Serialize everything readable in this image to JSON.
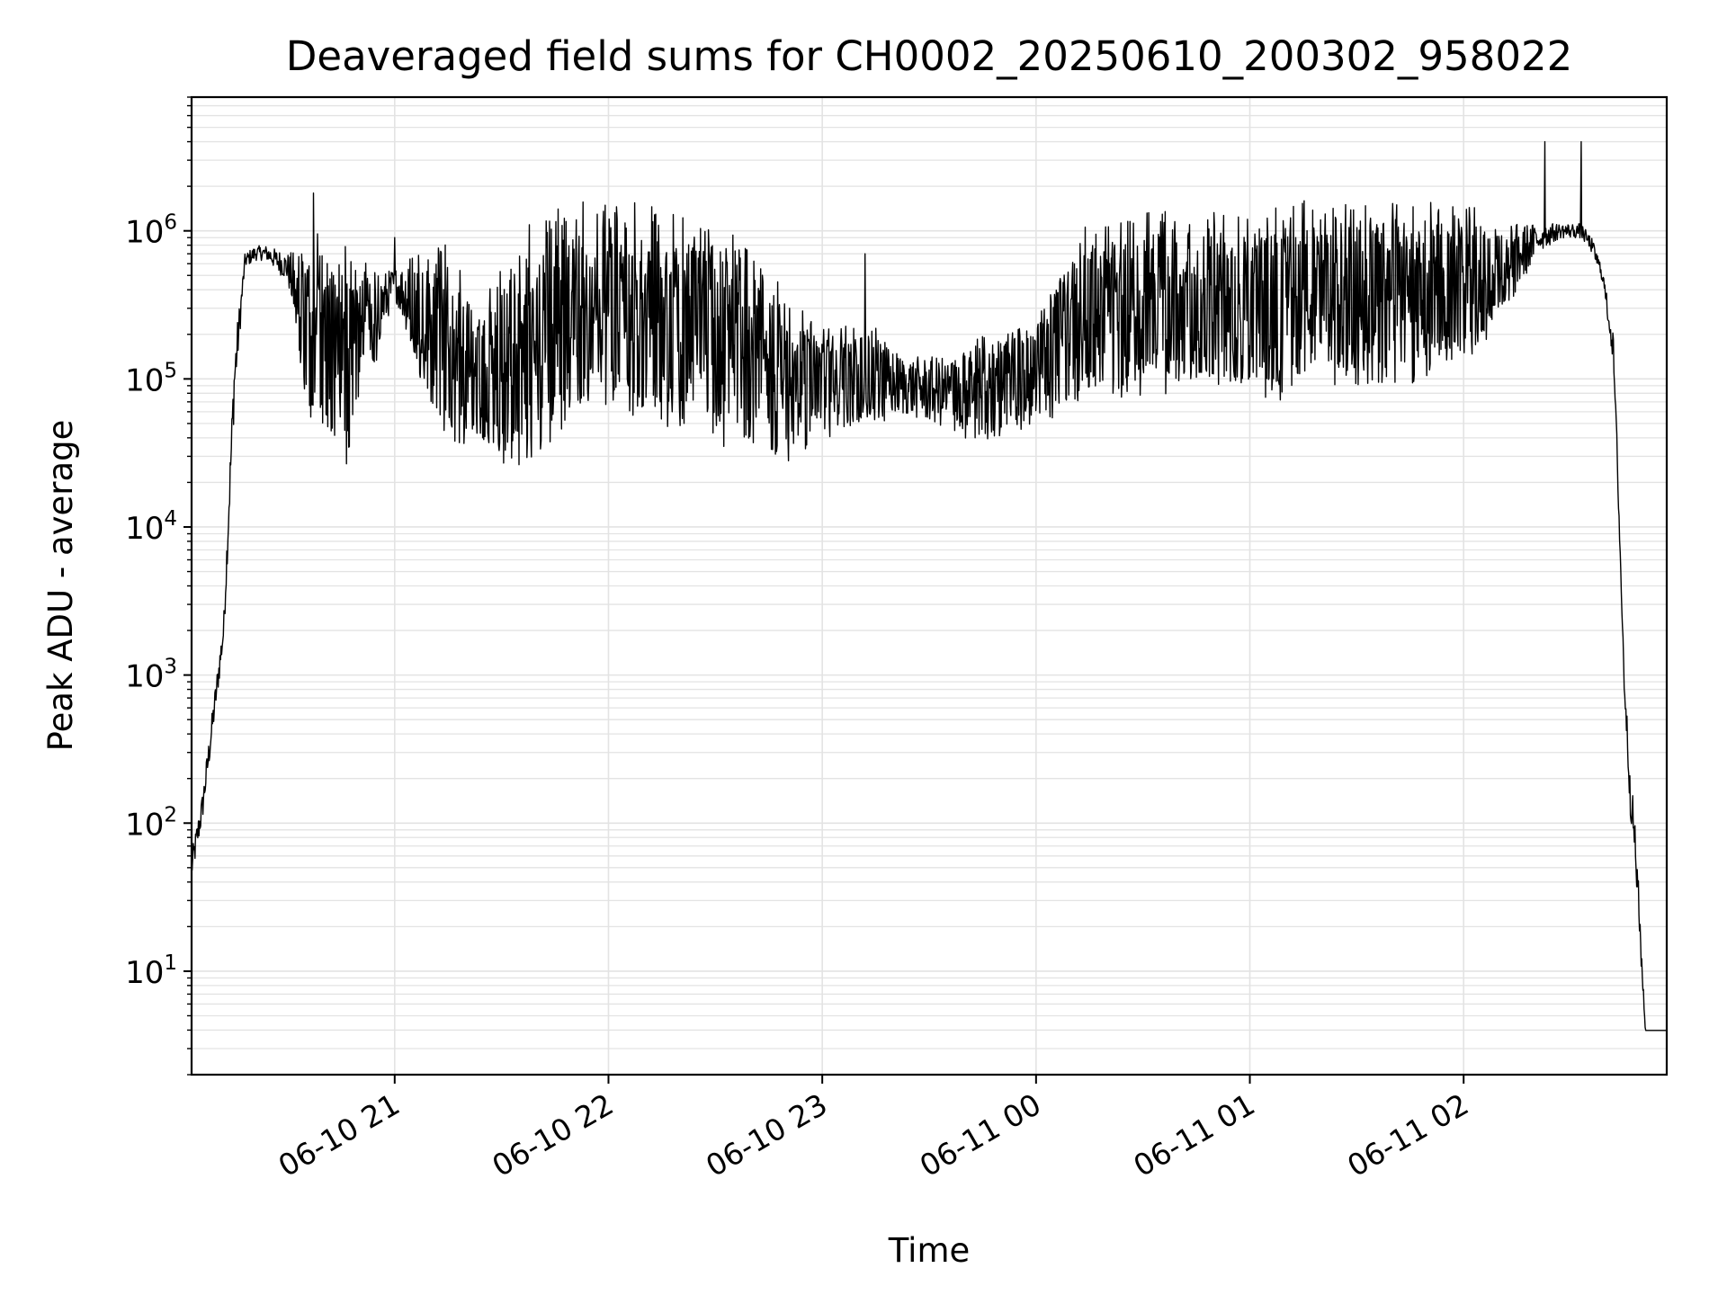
{
  "chart_data": {
    "type": "line",
    "title": "Deaveraged field sums for CH0002_20250610_200302_958022",
    "xlabel": "Time",
    "ylabel": "Peak ADU - average",
    "yscale": "log",
    "ylim": [
      2,
      8000000
    ],
    "xlim_hours": [
      20.05,
      26.95
    ],
    "grid": true,
    "line_color": "#000000",
    "grid_color": "#e3e3e3",
    "x_ticks": [
      {
        "hour": 21,
        "label": "06-10 21"
      },
      {
        "hour": 22,
        "label": "06-10 22"
      },
      {
        "hour": 23,
        "label": "06-10 23"
      },
      {
        "hour": 24,
        "label": "06-11 00"
      },
      {
        "hour": 25,
        "label": "06-11 01"
      },
      {
        "hour": 26,
        "label": "06-11 02"
      }
    ],
    "y_ticks": [
      {
        "value": 10,
        "base": "10",
        "exp": "1"
      },
      {
        "value": 100,
        "base": "10",
        "exp": "2"
      },
      {
        "value": 1000,
        "base": "10",
        "exp": "3"
      },
      {
        "value": 10000,
        "base": "10",
        "exp": "4"
      },
      {
        "value": 100000,
        "base": "10",
        "exp": "5"
      },
      {
        "value": 1000000,
        "base": "10",
        "exp": "6"
      }
    ],
    "envelope": {
      "hours": [
        20.05,
        20.1,
        20.15,
        20.2,
        20.25,
        20.3,
        20.35,
        20.4,
        20.5,
        20.6,
        20.7,
        20.8,
        20.85,
        20.9,
        21.0,
        21.2,
        21.4,
        21.6,
        21.8,
        22.0,
        22.2,
        22.4,
        22.6,
        22.8,
        23.0,
        23.2,
        23.4,
        23.6,
        23.8,
        24.0,
        24.2,
        24.4,
        24.6,
        24.8,
        25.0,
        25.2,
        25.4,
        25.6,
        25.8,
        26.0,
        26.2,
        26.35,
        26.45,
        26.55,
        26.6,
        26.65,
        26.7,
        26.72,
        26.75,
        26.78,
        26.8,
        26.82,
        26.85,
        26.9,
        26.95
      ],
      "log10_center": [
        1.7,
        2.1,
        2.7,
        3.3,
        5.0,
        5.8,
        5.85,
        5.85,
        5.75,
        5.3,
        5.2,
        5.1,
        5.4,
        5.4,
        5.65,
        5.3,
        5.0,
        5.1,
        5.4,
        5.45,
        5.4,
        5.3,
        5.2,
        5.0,
        4.95,
        5.0,
        4.95,
        4.9,
        4.95,
        5.05,
        5.4,
        5.45,
        5.5,
        5.5,
        5.45,
        5.5,
        5.55,
        5.55,
        5.55,
        5.6,
        5.75,
        5.95,
        6.0,
        6.0,
        5.9,
        5.7,
        5.2,
        4.4,
        3.0,
        2.2,
        1.9,
        1.4,
        0.6,
        0.6,
        0.6
      ],
      "log10_spread": [
        0.1,
        0.1,
        0.1,
        0.1,
        0.2,
        0.05,
        0.05,
        0.05,
        0.1,
        0.6,
        0.6,
        0.6,
        0.3,
        0.3,
        0.1,
        0.6,
        0.4,
        0.7,
        0.6,
        0.6,
        0.6,
        0.6,
        0.6,
        0.5,
        0.3,
        0.3,
        0.2,
        0.25,
        0.3,
        0.3,
        0.5,
        0.5,
        0.5,
        0.5,
        0.5,
        0.55,
        0.5,
        0.5,
        0.5,
        0.45,
        0.3,
        0.1,
        0.05,
        0.05,
        0.05,
        0.05,
        0.1,
        0.1,
        0.1,
        0.15,
        0.15,
        0.15,
        0.0,
        0.0,
        0.0
      ]
    },
    "spikes": [
      {
        "hour": 20.62,
        "value": 1800000
      },
      {
        "hour": 21.0,
        "value": 900000
      },
      {
        "hour": 21.63,
        "value": 1100000
      },
      {
        "hour": 23.2,
        "value": 700000
      },
      {
        "hour": 25.98,
        "value": 1000000
      },
      {
        "hour": 26.38,
        "value": 4000000
      },
      {
        "hour": 26.55,
        "value": 4000000
      }
    ]
  }
}
